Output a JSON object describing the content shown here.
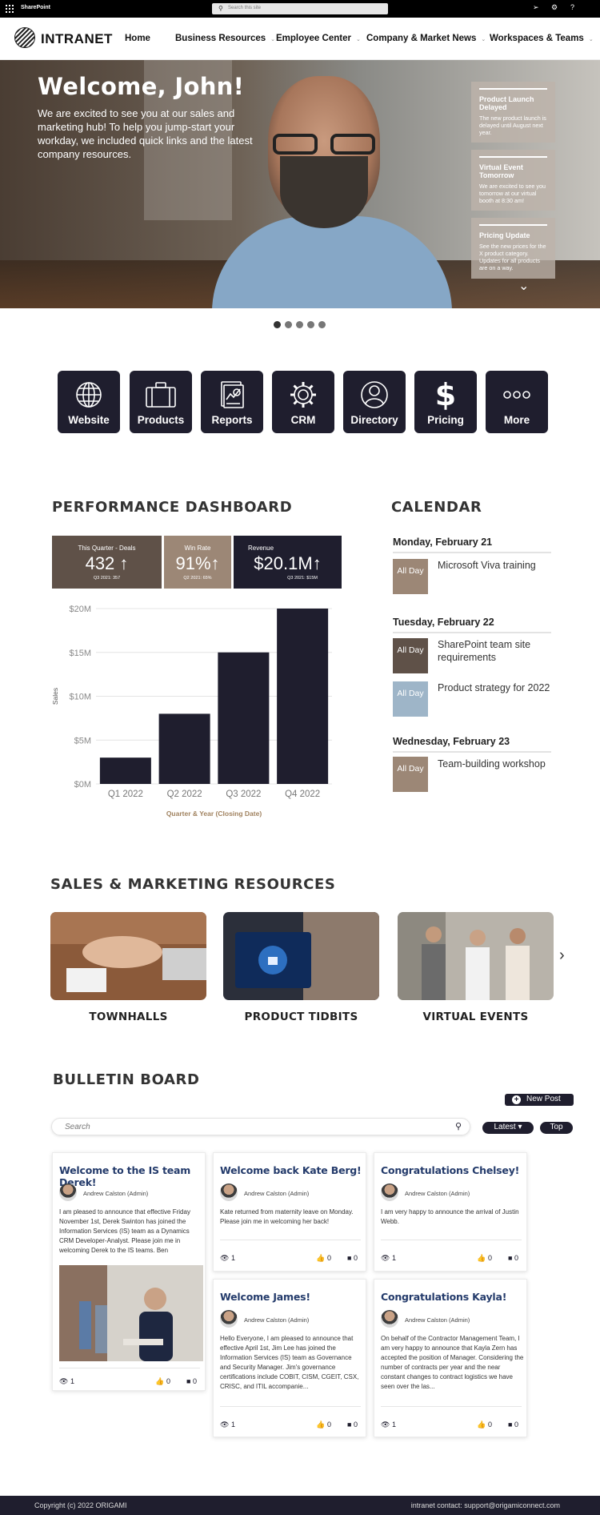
{
  "suite": {
    "title": "SharePoint",
    "search_placeholder": "Search this site",
    "icons": [
      "megaphone-icon",
      "gear-icon",
      "help-icon"
    ]
  },
  "hub": {
    "logo_text": "INTRANET",
    "nav": [
      {
        "label": "Home",
        "has_menu": false
      },
      {
        "label": "Business Resources",
        "has_menu": true
      },
      {
        "label": "Employee Center",
        "has_menu": true
      },
      {
        "label": "Company & Market News",
        "has_menu": true
      },
      {
        "label": "Workspaces & Teams",
        "has_menu": true
      }
    ]
  },
  "hero": {
    "title": "Welcome, John!",
    "text": "We are excited to see you at our sales and marketing hub! To help you jump-start your workday, we included quick links and the latest company resources.",
    "news": [
      {
        "title": "Product Launch Delayed",
        "text": "The new product launch is delayed until August next year."
      },
      {
        "title": "Virtual Event Tomorrow",
        "text": "We are excited to see you tomorrow at our virtual booth at 8:30 am!"
      },
      {
        "title": "Pricing Update",
        "text": "See the new prices for the X product category. Updates for all products are on a way."
      }
    ],
    "carousel_active": 1,
    "carousel_count": 5
  },
  "quick_links": [
    {
      "label": "Website",
      "icon": "globe-icon"
    },
    {
      "label": "Products",
      "icon": "briefcase-icon"
    },
    {
      "label": "Reports",
      "icon": "report-icon"
    },
    {
      "label": "CRM",
      "icon": "gear-icon"
    },
    {
      "label": "Directory",
      "icon": "person-icon"
    },
    {
      "label": "Pricing",
      "icon": "dollar-icon"
    },
    {
      "label": "More",
      "icon": "more-icon"
    }
  ],
  "dashboard": {
    "title": "PERFORMANCE DASHBOARD",
    "kpis": [
      {
        "label": "This Quarter - Deals",
        "value": "432",
        "arrow": "↑",
        "sub": "Q3 2021: 357",
        "color": "#5f5148"
      },
      {
        "label": "Win Rate",
        "value": "91%",
        "arrow": "↑",
        "sub": "Q2 2021: 65%",
        "color": "#9c8776"
      },
      {
        "label": "Revenue",
        "value": "$20.1M",
        "arrow": "↑",
        "sub": "Q3 2021: $15M",
        "color": "#1f1e2e"
      }
    ]
  },
  "chart_data": {
    "type": "bar",
    "categories": [
      "Q1 2022",
      "Q2 2022",
      "Q3 2022",
      "Q4 2022"
    ],
    "values": [
      3,
      8,
      15,
      20
    ],
    "ylabel": "Sales",
    "xlabel": "Quarter & Year (Closing Date)",
    "ylim": [
      0,
      20
    ],
    "yticks": [
      "$0M",
      "$5M",
      "$10M",
      "$15M",
      "$20M"
    ],
    "grid": true,
    "bar_color": "#1f1e2e",
    "xlabel_color": "#a0825f"
  },
  "calendar": {
    "title": "CALENDAR",
    "days": [
      {
        "date": "Monday, February 21",
        "events": [
          {
            "badge": "All Day",
            "title": "Microsoft Viva training",
            "color": "#9c8776"
          }
        ]
      },
      {
        "date": "Tuesday, February 22",
        "events": [
          {
            "badge": "All Day",
            "title": "SharePoint team site requirements",
            "color": "#5f5148"
          },
          {
            "badge": "All Day",
            "title": "Product strategy for 2022",
            "color": "#9eb5c8"
          }
        ]
      },
      {
        "date": "Wednesday, February 23",
        "events": [
          {
            "badge": "All Day",
            "title": "Team-building workshop",
            "color": "#9c8776"
          }
        ]
      }
    ]
  },
  "resources": {
    "title": "SALES & MARKETING RESOURCES",
    "cards": [
      {
        "label": "TOWNHALLS"
      },
      {
        "label": "PRODUCT TIDBITS"
      },
      {
        "label": "VIRTUAL EVENTS"
      }
    ]
  },
  "bulletin": {
    "title": "BULLETIN BOARD",
    "new_post": "New Post",
    "search_placeholder": "Search",
    "sort_latest": "Latest",
    "sort_top": "Top",
    "posts": [
      {
        "title": "Welcome to the IS team Derek!",
        "author": "Andrew Calston (Admin)",
        "body": "I am pleased to announce that effective Friday November 1st, Derek Swinton has joined the Information Services (IS) team as a Dynamics CRM Developer-Analyst. Please join me in welcoming Derek to the IS teams. Ben",
        "views": "1",
        "likes": "0",
        "comments": "0"
      },
      {
        "title": "Welcome back Kate Berg!",
        "author": "Andrew Calston (Admin)",
        "body": "Kate returned from maternity leave on Monday. Please join me in welcoming her back!",
        "views": "1",
        "likes": "0",
        "comments": "0"
      },
      {
        "title": "Congratulations Chelsey!",
        "author": "Andrew Calston (Admin)",
        "body": "I am very happy to announce the arrival of Justin Webb.",
        "views": "1",
        "likes": "0",
        "comments": "0"
      },
      {
        "title": "Welcome James!",
        "author": "Andrew Calston (Admin)",
        "body": "Hello Everyone, I am pleased to announce that effective April 1st, Jim Lee has joined the Information Services (IS) team as Governance and Security Manager. Jim's governance certifications include COBIT, CISM, CGEIT, CSX, CRISC, and ITIL accompanie...",
        "views": "1",
        "likes": "0",
        "comments": "0"
      },
      {
        "title": "Congratulations Kayla!",
        "author": "Andrew Calston (Admin)",
        "body": "On behalf of the Contractor Management Team, I am very happy to announce that Kayla Zern has accepted the position of Manager. Considering the number of contracts per year and the near constant changes to contract logistics we have seen over the las...",
        "views": "1",
        "likes": "0",
        "comments": "0"
      }
    ]
  },
  "footer": {
    "copyright": "Copyright (c) 2022 ORIGAMI",
    "contact": "intranet contact: support@origamiconnect.com"
  }
}
